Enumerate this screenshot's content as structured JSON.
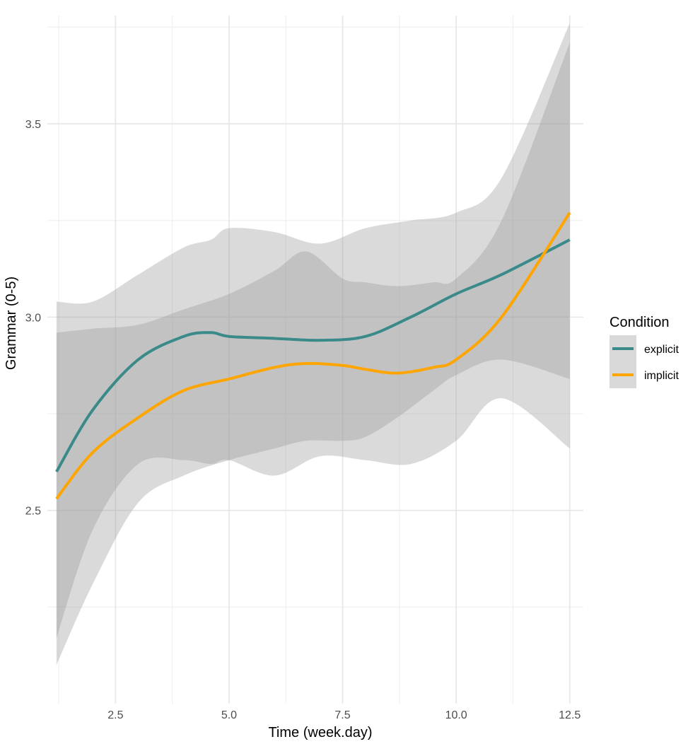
{
  "chart_data": {
    "type": "line",
    "xlabel": "Time (week.day)",
    "ylabel": "Grammar (0-5)",
    "xlim": [
      1.0,
      12.8
    ],
    "ylim": [
      2.0,
      3.78
    ],
    "x_ticks": [
      "2.5",
      "5.0",
      "7.5",
      "10.0",
      "12.5"
    ],
    "x_tick_values": [
      2.5,
      5.0,
      7.5,
      10.0,
      12.5
    ],
    "x_minor_values": [
      1.25,
      3.75,
      6.25,
      8.75,
      11.25
    ],
    "y_ticks": [
      "2.5",
      "3.0",
      "3.5"
    ],
    "y_tick_values": [
      2.5,
      3.0,
      3.5
    ],
    "y_minor_values": [
      2.25,
      2.75,
      3.25,
      3.75
    ],
    "grid": true,
    "legend": {
      "title": "Condition",
      "position": "right",
      "entries": [
        "explicit",
        "implicit"
      ]
    },
    "series": [
      {
        "name": "explicit",
        "color": "#3a8a8a",
        "x": [
          1.2,
          2.0,
          3.0,
          4.0,
          4.6,
          5.0,
          6.0,
          7.0,
          8.0,
          9.0,
          10.0,
          11.0,
          12.5
        ],
        "y": [
          2.6,
          2.76,
          2.89,
          2.95,
          2.96,
          2.95,
          2.945,
          2.94,
          2.95,
          3.0,
          3.06,
          3.11,
          3.2
        ],
        "lower": [
          2.17,
          2.45,
          2.62,
          2.63,
          2.62,
          2.63,
          2.59,
          2.64,
          2.63,
          2.62,
          2.68,
          2.79,
          2.66
        ],
        "upper": [
          3.04,
          3.04,
          3.11,
          3.18,
          3.2,
          3.23,
          3.22,
          3.19,
          3.23,
          3.25,
          3.27,
          3.36,
          3.76
        ]
      },
      {
        "name": "implicit",
        "color": "#FFA500",
        "x": [
          1.2,
          2.0,
          3.0,
          4.0,
          5.0,
          6.0,
          6.7,
          7.5,
          8.0,
          8.7,
          9.5,
          10.0,
          11.0,
          12.5
        ],
        "y": [
          2.53,
          2.65,
          2.74,
          2.81,
          2.84,
          2.87,
          2.88,
          2.875,
          2.865,
          2.855,
          2.87,
          2.89,
          3.0,
          3.27
        ],
        "lower": [
          2.1,
          2.31,
          2.52,
          2.59,
          2.63,
          2.66,
          2.68,
          2.68,
          2.69,
          2.74,
          2.81,
          2.85,
          2.89,
          2.84
        ],
        "upper": [
          2.96,
          2.97,
          2.98,
          3.02,
          3.06,
          3.12,
          3.17,
          3.1,
          3.09,
          3.08,
          3.09,
          3.1,
          3.25,
          3.71
        ]
      }
    ]
  }
}
